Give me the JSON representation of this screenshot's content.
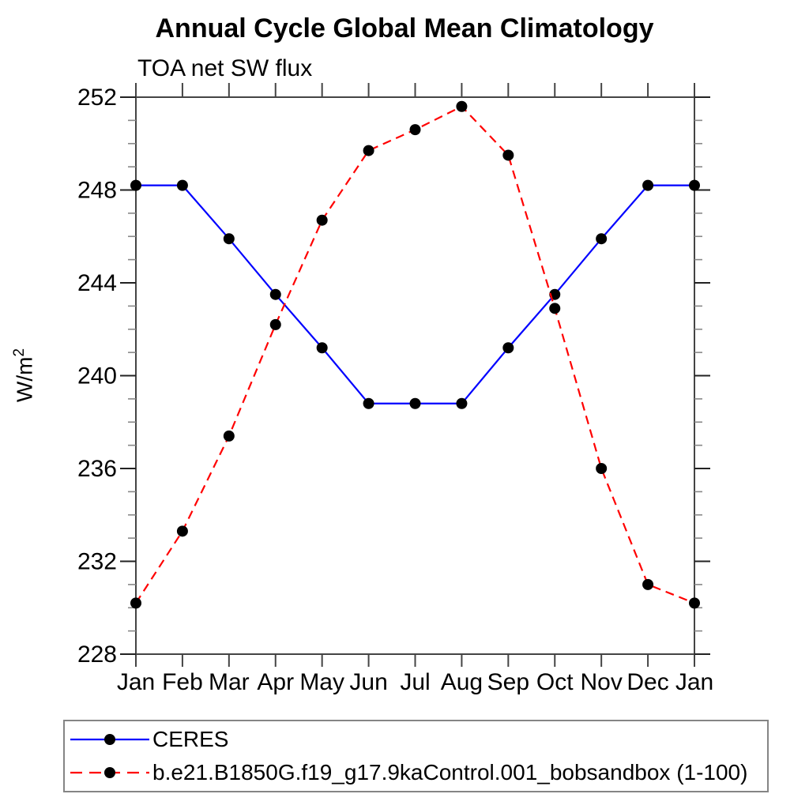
{
  "chart_data": {
    "type": "line",
    "title": "Annual Cycle Global Mean Climatology",
    "subtitle": "TOA net SW flux",
    "ylabel": "W/m²",
    "ylabel_parts": {
      "base": "W/m",
      "exp": "2"
    },
    "x_categories": [
      "Jan",
      "Feb",
      "Mar",
      "Apr",
      "May",
      "Jun",
      "Jul",
      "Aug",
      "Sep",
      "Oct",
      "Nov",
      "Dec",
      "Jan"
    ],
    "ylim": [
      228,
      252
    ],
    "y_major_ticks": [
      228,
      232,
      236,
      240,
      244,
      248,
      252
    ],
    "y_minor_step": 1,
    "grid": "off",
    "legend_position": "bottom",
    "series": [
      {
        "name": "CERES",
        "color": "#0000ff",
        "line_style": "solid",
        "marker": "black-circle",
        "values": [
          248.2,
          248.2,
          245.9,
          243.5,
          241.2,
          238.8,
          238.8,
          238.8,
          241.2,
          243.5,
          245.9,
          248.2,
          248.2
        ]
      },
      {
        "name": "b.e21.B1850G.f19_g17.9kaControl.001_bobsandbox (1-100)",
        "color": "#ff0000",
        "line_style": "dashed",
        "marker": "black-circle",
        "values": [
          230.2,
          233.3,
          237.4,
          242.2,
          246.7,
          249.7,
          250.6,
          251.6,
          249.5,
          242.9,
          236.0,
          231.0,
          230.2
        ]
      }
    ],
    "axis_color": "#444444",
    "minor_tick_color": "#888888",
    "marker_color": "#000000"
  }
}
